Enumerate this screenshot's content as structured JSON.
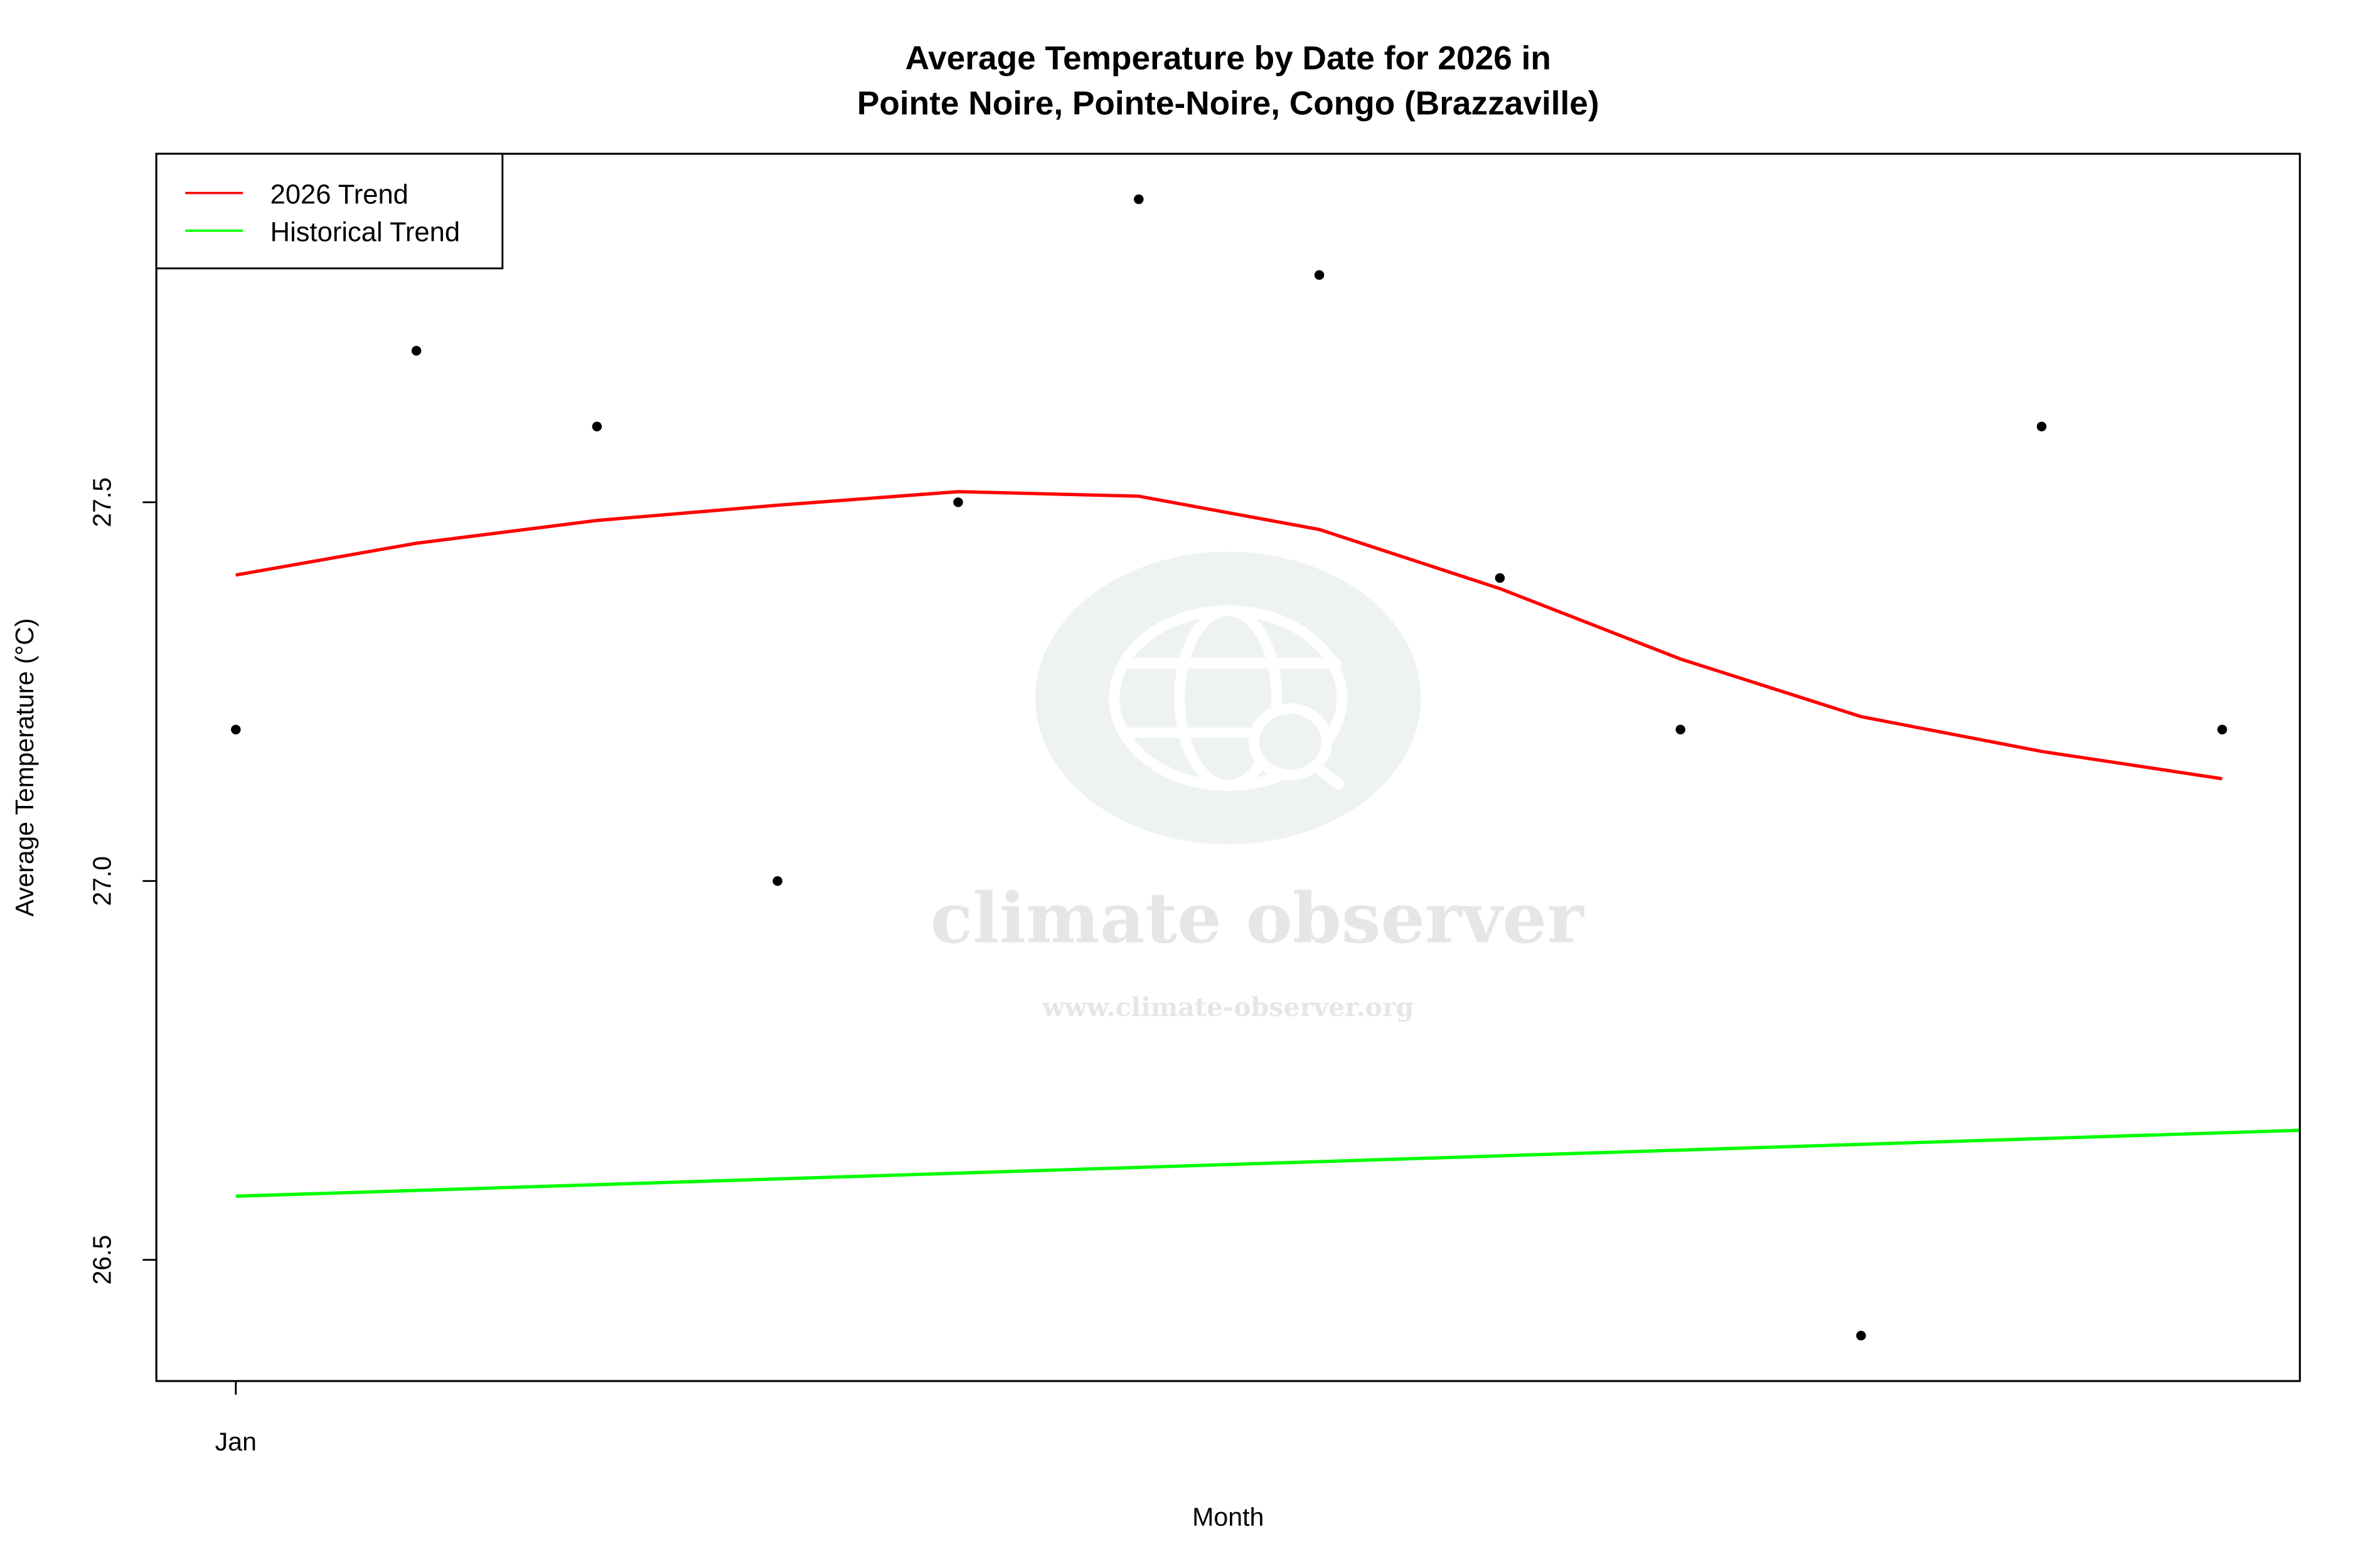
{
  "chart_data": {
    "type": "line",
    "title": "Average Temperature by Date for 2026 in",
    "subtitle": "Pointe Noire, Pointe-Noire, Congo (Brazzaville)",
    "xlabel": "Month",
    "ylabel": "Average Temperature (°C)",
    "x_tick_labels": [
      "Jan"
    ],
    "y_ticks": [
      26.5,
      27.0,
      27.5
    ],
    "y_tick_labels": [
      "26.5",
      "27.0",
      "27.5"
    ],
    "ylim": [
      26.34,
      27.96
    ],
    "xlim_months": [
      0.56,
      12.43
    ],
    "grid": false,
    "legend_position": "top-left",
    "months": [
      1,
      2,
      3,
      4,
      5,
      6,
      7,
      8,
      9,
      10,
      11,
      12
    ],
    "points": [
      27.2,
      27.7,
      27.6,
      27.0,
      27.5,
      27.9,
      27.8,
      27.4,
      27.2,
      26.4,
      27.6,
      27.2
    ],
    "series": [
      {
        "name": "2026 Trend",
        "color": "#ff0000",
        "months": [
          1,
          2,
          3,
          4,
          5,
          6,
          7,
          8,
          9,
          10,
          11,
          12
        ],
        "values": [
          27.404,
          27.446,
          27.476,
          27.496,
          27.514,
          27.508,
          27.464,
          27.386,
          27.293,
          27.217,
          27.171,
          27.135
        ]
      },
      {
        "name": "Historical Trend",
        "color": "#00ff00",
        "months": [
          1,
          12.43
        ],
        "values": [
          26.584,
          26.671
        ]
      }
    ],
    "point_color": "#000000"
  },
  "watermark": {
    "name": "climate observer",
    "url": "www.climate-observer.org"
  }
}
